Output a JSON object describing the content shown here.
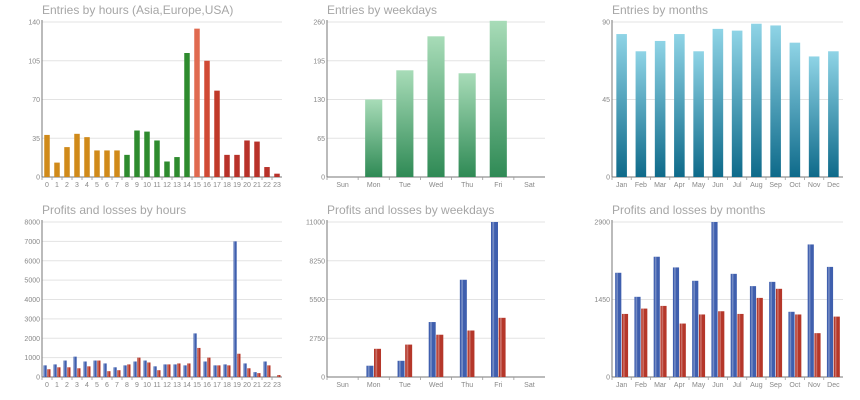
{
  "chart_data": [
    {
      "id": "hours",
      "type": "bar",
      "title": "Entries by hours (Asia,Europe,USA)",
      "categories": [
        "0",
        "1",
        "2",
        "3",
        "4",
        "5",
        "6",
        "7",
        "8",
        "9",
        "10",
        "11",
        "12",
        "13",
        "14",
        "15",
        "16",
        "17",
        "18",
        "19",
        "20",
        "21",
        "22",
        "23"
      ],
      "values": [
        38,
        13,
        27,
        39,
        36,
        24,
        24,
        24,
        20,
        42,
        41,
        33,
        14,
        18,
        112,
        134,
        105,
        78,
        20,
        20,
        33,
        32,
        9,
        3
      ],
      "colors": [
        "#d08a1a",
        "#d08a1a",
        "#d08a1a",
        "#d08a1a",
        "#d08a1a",
        "#d08a1a",
        "#d08a1a",
        "#d08a1a",
        "#2e8b2e",
        "#2e8b2e",
        "#2e8b2e",
        "#2e8b2e",
        "#2e8b2e",
        "#2e8b2e",
        "#2e8b2e",
        "#e06a50",
        "#d04a35",
        "#c03a2a",
        "#b8322a",
        "#b8322a",
        "#b8322a",
        "#b8322a",
        "#b8322a",
        "#b8322a"
      ],
      "yticks": [
        "0",
        "35",
        "70",
        "105",
        "140"
      ],
      "ylim": [
        0,
        140
      ],
      "grid": true
    },
    {
      "id": "weekdays",
      "type": "bar",
      "title": "Entries by weekdays",
      "categories": [
        "Sun",
        "Mon",
        "Tue",
        "Wed",
        "Thu",
        "Fri",
        "Sat"
      ],
      "values": [
        0,
        130,
        179,
        236,
        174,
        262,
        0
      ],
      "gradient": [
        "#a8dcb8",
        "#2f8a55"
      ],
      "yticks": [
        "0",
        "65",
        "130",
        "195",
        "260"
      ],
      "ylim": [
        0,
        260
      ],
      "grid": true
    },
    {
      "id": "months",
      "type": "bar",
      "title": "Entries by months",
      "categories": [
        "Jan",
        "Feb",
        "Mar",
        "Apr",
        "May",
        "Jun",
        "Jul",
        "Aug",
        "Sep",
        "Oct",
        "Nov",
        "Dec"
      ],
      "values": [
        83,
        73,
        79,
        83,
        73,
        86,
        85,
        89,
        88,
        78,
        70,
        73
      ],
      "gradient": [
        "#8fd4e6",
        "#0e6a8a"
      ],
      "yticks": [
        "0",
        "45",
        "90"
      ],
      "ylim": [
        0,
        90
      ],
      "grid": true
    },
    {
      "id": "pl-hours",
      "type": "bar",
      "title": "Profits and losses by hours",
      "categories": [
        "0",
        "1",
        "2",
        "3",
        "4",
        "5",
        "6",
        "7",
        "8",
        "9",
        "10",
        "11",
        "12",
        "13",
        "14",
        "15",
        "16",
        "17",
        "18",
        "19",
        "20",
        "21",
        "22",
        "23"
      ],
      "series": [
        {
          "values": [
            600,
            650,
            850,
            1050,
            800,
            850,
            700,
            500,
            600,
            800,
            850,
            550,
            650,
            650,
            600,
            2250,
            800,
            600,
            650,
            7000,
            700,
            250,
            800,
            0
          ],
          "color": "#3f5fae"
        },
        {
          "values": [
            400,
            500,
            500,
            450,
            550,
            850,
            300,
            350,
            650,
            1000,
            750,
            350,
            650,
            700,
            700,
            1500,
            1000,
            600,
            600,
            1200,
            450,
            200,
            600,
            100
          ],
          "color": "#b5372a"
        }
      ],
      "yticks": [
        "0",
        "1000",
        "2000",
        "3000",
        "4000",
        "5000",
        "6000",
        "7000",
        "8000"
      ],
      "ylim": [
        0,
        8000
      ],
      "grid": true
    },
    {
      "id": "pl-weekdays",
      "type": "bar",
      "title": "Profits and losses by weekdays",
      "categories": [
        "Sun",
        "Mon",
        "Tue",
        "Wed",
        "Thu",
        "Fri",
        "Sat"
      ],
      "series": [
        {
          "values": [
            0,
            800,
            1150,
            3900,
            6900,
            11000,
            0
          ],
          "color": "#3f5fae"
        },
        {
          "values": [
            0,
            2000,
            2300,
            3000,
            3300,
            4200,
            0
          ],
          "color": "#b5372a"
        }
      ],
      "yticks": [
        "0",
        "2750",
        "5500",
        "8250",
        "11000"
      ],
      "ylim": [
        0,
        11000
      ],
      "grid": true
    },
    {
      "id": "pl-months",
      "type": "bar",
      "title": "Profits and losses by months",
      "categories": [
        "Jan",
        "Feb",
        "Mar",
        "Apr",
        "May",
        "Jun",
        "Jul",
        "Aug",
        "Sep",
        "Oct",
        "Nov",
        "Dec"
      ],
      "series": [
        {
          "values": [
            1950,
            1500,
            2250,
            2050,
            1800,
            2900,
            1930,
            1700,
            1780,
            1220,
            2480,
            2060
          ],
          "color": "#3f5fae"
        },
        {
          "values": [
            1180,
            1280,
            1330,
            1000,
            1170,
            1230,
            1180,
            1480,
            1650,
            1170,
            820,
            1130
          ],
          "color": "#b5372a"
        }
      ],
      "yticks": [
        "0",
        "1450",
        "2900"
      ],
      "ylim": [
        0,
        2900
      ],
      "grid": true
    }
  ]
}
